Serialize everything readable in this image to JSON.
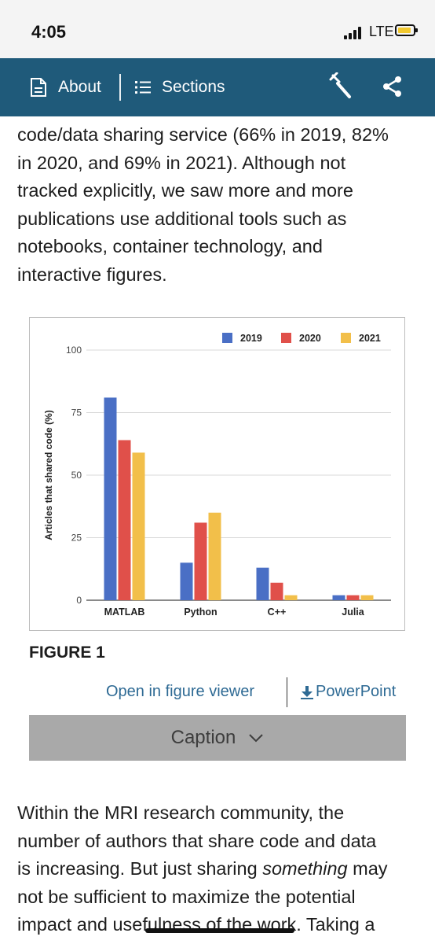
{
  "status_bar": {
    "time": "4:05",
    "network": "LTE"
  },
  "nav": {
    "about_label": "About",
    "sections_label": "Sections",
    "icons": [
      "document-icon",
      "list-icon",
      "wrench-icon",
      "share-icon"
    ]
  },
  "article": {
    "para1_lines": [
      "code/data sharing service (66% in 2019, 82%",
      "in 2020, and 69% in 2021). Although not",
      "tracked explicitly, we saw more and more",
      "publications use additional tools such as",
      "notebooks, container technology, and",
      "interactive figures."
    ],
    "para2_lines": [
      [
        "Within the MRI research community, the",
        "",
        ""
      ],
      [
        "number of authors that share code and data",
        "",
        ""
      ],
      [
        "is increasing. But just sharing ",
        "something",
        " may"
      ],
      [
        "not be sufficient to maximize the potential",
        "",
        ""
      ],
      [
        "impact and usefulness of the work. Taking a",
        "",
        ""
      ]
    ]
  },
  "figure": {
    "label": "FIGURE 1",
    "open_viewer_label": "Open in figure viewer",
    "powerpoint_label": "PowerPoint",
    "caption_label": "Caption"
  },
  "chart_data": {
    "type": "bar",
    "categories": [
      "MATLAB",
      "Python",
      "C++",
      "Julia"
    ],
    "series": [
      {
        "name": "2019",
        "color": "#4a6fc5",
        "values": [
          81,
          15,
          13,
          2
        ]
      },
      {
        "name": "2020",
        "color": "#e0504a",
        "values": [
          64,
          31,
          7,
          2
        ]
      },
      {
        "name": "2021",
        "color": "#f2bf4a",
        "values": [
          59,
          35,
          2,
          2
        ]
      }
    ],
    "ylabel": "Articles that shared code (%)",
    "xlabel": "",
    "ylim": [
      0,
      100
    ],
    "yticks": [
      0,
      25,
      50,
      75,
      100
    ],
    "grid": true,
    "legend_position": "top-right"
  },
  "colors": {
    "nav_bg": "#1f5a7a",
    "link": "#2e6a94",
    "caption_bg": "#a9a9a9"
  }
}
